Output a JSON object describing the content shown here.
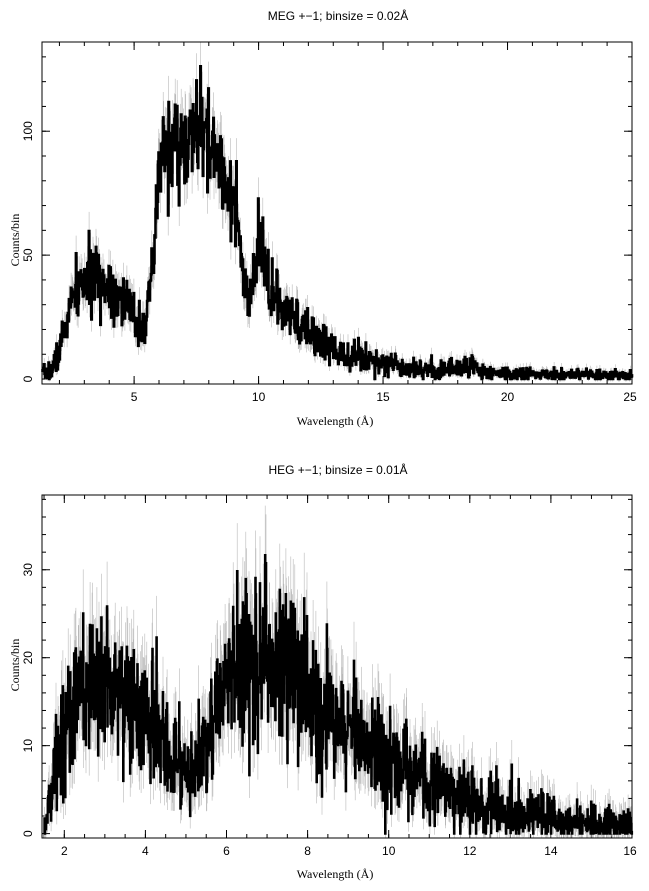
{
  "chart_data": [
    {
      "type": "line",
      "title": "MEG +−1; binsize = 0.02Å",
      "xlabel": "Wavelength (Å)",
      "ylabel": "Counts/bin",
      "xlim": [
        1.3,
        25
      ],
      "ylim": [
        -2,
        136
      ],
      "xticks": [
        5,
        10,
        15,
        20,
        25
      ],
      "yticks": [
        0,
        50,
        100
      ],
      "colors": {
        "data": "#000000",
        "errorbars": "#b8b8b8"
      },
      "series": [
        {
          "x": [
            1.3,
            1.7,
            2.0,
            2.3,
            2.6,
            3.0,
            3.5,
            4.0,
            4.3,
            4.6,
            5.0,
            5.3,
            5.6,
            5.8,
            6.0,
            6.2,
            6.5,
            6.8,
            7.0,
            7.3,
            7.5,
            7.8,
            8.0,
            8.3,
            8.6,
            8.9,
            9.2,
            9.4,
            9.6,
            9.8,
            10.0,
            10.2,
            10.5,
            11.0,
            11.5,
            12.0,
            12.5,
            13.0,
            14.0,
            15.0,
            16.0,
            17.0,
            18.0,
            18.5,
            19.0,
            20.0,
            21.0,
            22.0,
            23.0,
            24.0,
            25.0
          ],
          "values": [
            2,
            4,
            12,
            25,
            34,
            40,
            40,
            38,
            35,
            31,
            25,
            22,
            30,
            50,
            86,
            94,
            93,
            96,
            92,
            95,
            104,
            97,
            94,
            91,
            84,
            74,
            58,
            37,
            29,
            40,
            52,
            50,
            35,
            26,
            23,
            18,
            16,
            12,
            9,
            7,
            5,
            3.5,
            4.5,
            5.5,
            3,
            2,
            1.8,
            1.5,
            1.5,
            1.3,
            1.2
          ]
        }
      ]
    },
    {
      "type": "line",
      "title": "HEG +−1; binsize = 0.01Å",
      "xlabel": "Wavelength (Å)",
      "ylabel": "Counts/bin",
      "xlim": [
        1.45,
        16
      ],
      "ylim": [
        -0.5,
        38.5
      ],
      "xticks": [
        2,
        4,
        6,
        8,
        10,
        12,
        14,
        16
      ],
      "yticks": [
        0,
        10,
        20,
        30
      ],
      "colors": {
        "data": "#000000",
        "errorbars": "#b8b8b8"
      },
      "series": [
        {
          "x": [
            1.5,
            1.7,
            1.9,
            2.2,
            2.5,
            2.8,
            3.0,
            3.3,
            3.6,
            4.0,
            4.3,
            4.6,
            4.9,
            5.2,
            5.5,
            5.8,
            6.0,
            6.3,
            6.6,
            6.9,
            7.2,
            7.5,
            7.8,
            8.1,
            8.4,
            8.8,
            9.2,
            9.6,
            10.0,
            10.5,
            11.0,
            11.5,
            12.0,
            12.5,
            13.0,
            13.5,
            14.0,
            15.0,
            16.0
          ],
          "values": [
            1,
            5,
            11,
            14,
            16,
            17,
            18,
            17.5,
            15,
            13,
            11,
            9,
            7,
            7.5,
            10,
            14,
            18,
            19,
            19.5,
            20,
            21,
            19.5,
            17.5,
            15.5,
            14,
            12,
            11,
            10,
            8.5,
            7.5,
            6,
            5,
            4,
            3.2,
            2.5,
            2,
            1.5,
            1.2,
            1
          ]
        }
      ]
    }
  ]
}
